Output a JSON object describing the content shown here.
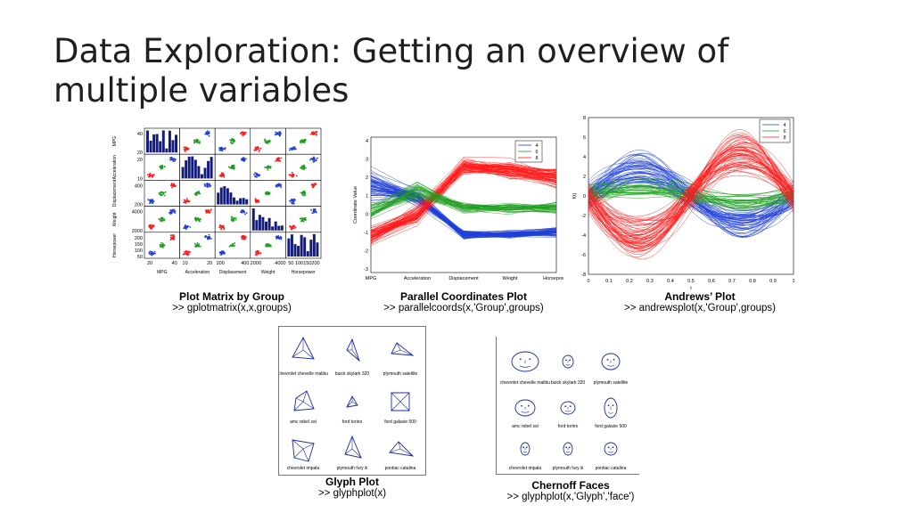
{
  "slide": {
    "title": "Data Exploration: Getting an overview of multiple variables"
  },
  "groups": [
    {
      "name": "4",
      "color": "#1f3fd6"
    },
    {
      "name": "6",
      "color": "#1e9e1e"
    },
    {
      "name": "8",
      "color": "#ff1a1a"
    }
  ],
  "plot_matrix": {
    "title": "Plot Matrix by Group",
    "command": ">> gplotmatrix(x,x,groups)",
    "variables": [
      "MPG",
      "Acceleration",
      "Displacement",
      "Weight",
      "Horsepower"
    ],
    "row_ticks": [
      [
        "40",
        "20"
      ],
      [
        "20",
        "10"
      ],
      [
        "400",
        "200"
      ],
      [
        "4000",
        "2000"
      ],
      [
        "200",
        "150",
        "100",
        "50"
      ]
    ],
    "col_ticks": [
      [
        "20",
        "40"
      ],
      [
        "10",
        "20"
      ],
      [
        "200",
        "400"
      ],
      [
        "2000",
        "4000"
      ],
      [
        "50",
        "100",
        "150",
        "200"
      ]
    ]
  },
  "parallel": {
    "title": "Parallel Coordinates Plot",
    "command": ">> parallelcoords(x,'Group',groups)",
    "ylabel": "Coordinate Value",
    "axes": [
      "MPG",
      "Acceleration",
      "Displacement",
      "Weight",
      "Horsepower"
    ],
    "yticks": [
      "4",
      "3",
      "2",
      "1",
      "0",
      "-1",
      "-2",
      "-3"
    ],
    "legend": [
      "4",
      "6",
      "8"
    ]
  },
  "andrews": {
    "title": "Andrews’ Plot",
    "command": ">> andrewsplot(x,'Group',groups)",
    "ylabel": "f(t)",
    "xlabel": "t",
    "yticks": [
      "8",
      "6",
      "4",
      "2",
      "0",
      "-2",
      "-4",
      "-6",
      "-8"
    ],
    "xticks": [
      "0",
      "0.1",
      "0.2",
      "0.3",
      "0.4",
      "0.5",
      "0.6",
      "0.7",
      "0.8",
      "0.9",
      "1"
    ],
    "legend": [
      "4",
      "6",
      "8"
    ]
  },
  "glyph": {
    "title": "Glyph Plot",
    "command": ">> glyphplot(x)",
    "labels": [
      [
        "chevrolet chevelle malibu",
        "buick skylark 320",
        "plymouth satellite"
      ],
      [
        "amc rebel sst",
        "ford torino",
        "ford galaxie 500"
      ],
      [
        "chevrolet impala",
        "plymouth fury iii",
        "pontiac catalina"
      ]
    ]
  },
  "chernoff": {
    "title": "Chernoff Faces",
    "command": ">> glyphplot(x,'Glyph','face')",
    "labels": [
      [
        "chevrolet chevelle malibu",
        "buick skylark 320",
        "plymouth satellite"
      ],
      [
        "amc rebel sst",
        "ford torino",
        "ford galaxie 500"
      ],
      [
        "chevrolet impala",
        "plymouth fury iii",
        "pontiac catalina"
      ]
    ]
  }
}
